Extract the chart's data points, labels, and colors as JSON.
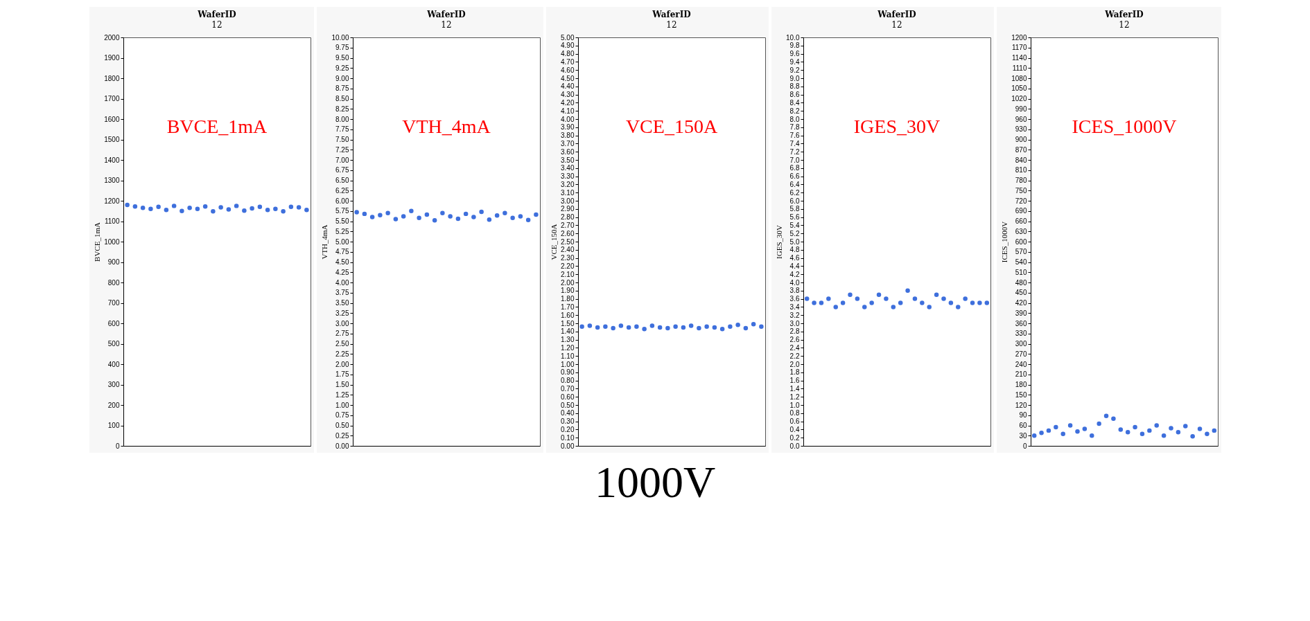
{
  "chart_data": [
    {
      "type": "scatter",
      "title": "WaferID",
      "subtitle": "12",
      "ylabel": "BVCE_1mA",
      "marker": "circle",
      "tick_labels": "y",
      "annotations": [
        "BVCE_1mA"
      ],
      "ylim": [
        0,
        2000
      ],
      "yticks": [
        0,
        100,
        200,
        300,
        400,
        500,
        600,
        700,
        800,
        900,
        1000,
        1100,
        1200,
        1300,
        1400,
        1500,
        1600,
        1700,
        1800,
        1900,
        2000
      ],
      "categories": [
        null,
        null,
        null,
        null,
        null,
        null,
        null,
        null,
        null,
        null,
        null,
        null,
        null,
        null,
        null,
        null,
        null,
        null,
        null,
        null,
        null,
        null,
        null,
        null
      ],
      "series": [
        {
          "color": "#3e6fdc",
          "values": [
            1180,
            1172,
            1165,
            1160,
            1170,
            1155,
            1175,
            1150,
            1165,
            1160,
            1172,
            1148,
            1168,
            1158,
            1175,
            1152,
            1163,
            1170,
            1155,
            1160,
            1148,
            1170,
            1168,
            1155
          ]
        }
      ]
    },
    {
      "type": "scatter",
      "title": "WaferID",
      "subtitle": "12",
      "ylabel": "VTH_4mA",
      "marker": "circle",
      "tick_labels": "y",
      "annotations": [
        "VTH_4mA"
      ],
      "ylim": [
        0,
        10
      ],
      "yticks": [
        {
          "value": 0,
          "label": "0.00"
        },
        0.25,
        {
          "value": 0.5,
          "label": "0.50"
        },
        0.75,
        {
          "value": 1,
          "label": "1.00"
        },
        1.25,
        {
          "value": 1.5,
          "label": "1.50"
        },
        1.75,
        {
          "value": 2,
          "label": "2.00"
        },
        2.25,
        {
          "value": 2.5,
          "label": "2.50"
        },
        2.75,
        {
          "value": 3,
          "label": "3.00"
        },
        3.25,
        {
          "value": 3.5,
          "label": "3.50"
        },
        3.75,
        {
          "value": 4,
          "label": "4.00"
        },
        4.25,
        {
          "value": 4.5,
          "label": "4.50"
        },
        4.75,
        {
          "value": 5,
          "label": "5.00"
        },
        5.25,
        {
          "value": 5.5,
          "label": "5.50"
        },
        5.75,
        {
          "value": 6,
          "label": "6.00"
        },
        6.25,
        {
          "value": 6.5,
          "label": "6.50"
        },
        6.75,
        {
          "value": 7,
          "label": "7.00"
        },
        7.25,
        {
          "value": 7.5,
          "label": "7.50"
        },
        7.75,
        {
          "value": 8,
          "label": "8.00"
        },
        8.25,
        {
          "value": 8.5,
          "label": "8.50"
        },
        8.75,
        {
          "value": 9,
          "label": "9.00"
        },
        9.25,
        {
          "value": 9.5,
          "label": "9.50"
        },
        9.75,
        {
          "value": 10,
          "label": "10.00"
        }
      ],
      "categories": [
        null,
        null,
        null,
        null,
        null,
        null,
        null,
        null,
        null,
        null,
        null,
        null,
        null,
        null,
        null,
        null,
        null,
        null,
        null,
        null,
        null,
        null,
        null,
        null
      ],
      "series": [
        {
          "color": "#3e6fdc",
          "values": [
            5.72,
            5.68,
            5.6,
            5.65,
            5.7,
            5.55,
            5.62,
            5.75,
            5.58,
            5.66,
            5.52,
            5.7,
            5.62,
            5.56,
            5.68,
            5.6,
            5.73,
            5.54,
            5.64,
            5.7,
            5.58,
            5.62,
            5.53,
            5.66
          ]
        }
      ]
    },
    {
      "type": "scatter",
      "title": "WaferID",
      "subtitle": "12",
      "ylabel": "VCE_150A",
      "marker": "circle",
      "tick_labels": "y",
      "annotations": [
        "VCE_150A",
        "1000V"
      ],
      "ylim": [
        0,
        5
      ],
      "yticks": [
        {
          "value": 0,
          "label": "0.00"
        },
        {
          "value": 0.1,
          "label": "0.10"
        },
        {
          "value": 0.2,
          "label": "0.20"
        },
        {
          "value": 0.3,
          "label": "0.30"
        },
        {
          "value": 0.4,
          "label": "0.40"
        },
        {
          "value": 0.5,
          "label": "0.50"
        },
        {
          "value": 0.6,
          "label": "0.60"
        },
        {
          "value": 0.7,
          "label": "0.70"
        },
        {
          "value": 0.8,
          "label": "0.80"
        },
        {
          "value": 0.9,
          "label": "0.90"
        },
        {
          "value": 1,
          "label": "1.00"
        },
        {
          "value": 1.1,
          "label": "1.10"
        },
        {
          "value": 1.2,
          "label": "1.20"
        },
        {
          "value": 1.3,
          "label": "1.30"
        },
        {
          "value": 1.4,
          "label": "1.40"
        },
        {
          "value": 1.5,
          "label": "1.50"
        },
        {
          "value": 1.6,
          "label": "1.60"
        },
        {
          "value": 1.7,
          "label": "1.70"
        },
        {
          "value": 1.8,
          "label": "1.80"
        },
        {
          "value": 1.9,
          "label": "1.90"
        },
        {
          "value": 2,
          "label": "2.00"
        },
        {
          "value": 2.1,
          "label": "2.10"
        },
        {
          "value": 2.2,
          "label": "2.20"
        },
        {
          "value": 2.3,
          "label": "2.30"
        },
        {
          "value": 2.4,
          "label": "2.40"
        },
        {
          "value": 2.5,
          "label": "2.50"
        },
        {
          "value": 2.6,
          "label": "2.60"
        },
        {
          "value": 2.7,
          "label": "2.70"
        },
        {
          "value": 2.8,
          "label": "2.80"
        },
        {
          "value": 2.9,
          "label": "2.90"
        },
        {
          "value": 3,
          "label": "3.00"
        },
        {
          "value": 3.1,
          "label": "3.10"
        },
        {
          "value": 3.2,
          "label": "3.20"
        },
        {
          "value": 3.3,
          "label": "3.30"
        },
        {
          "value": 3.4,
          "label": "3.40"
        },
        {
          "value": 3.5,
          "label": "3.50"
        },
        {
          "value": 3.6,
          "label": "3.60"
        },
        {
          "value": 3.7,
          "label": "3.70"
        },
        {
          "value": 3.8,
          "label": "3.80"
        },
        {
          "value": 3.9,
          "label": "3.90"
        },
        {
          "value": 4,
          "label": "4.00"
        },
        {
          "value": 4.1,
          "label": "4.10"
        },
        {
          "value": 4.2,
          "label": "4.20"
        },
        {
          "value": 4.3,
          "label": "4.30"
        },
        {
          "value": 4.4,
          "label": "4.40"
        },
        {
          "value": 4.5,
          "label": "4.50"
        },
        {
          "value": 4.6,
          "label": "4.60"
        },
        {
          "value": 4.7,
          "label": "4.70"
        },
        {
          "value": 4.8,
          "label": "4.80"
        },
        {
          "value": 4.9,
          "label": "4.90"
        },
        {
          "value": 5,
          "label": "5.00"
        }
      ],
      "categories": [
        null,
        null,
        null,
        null,
        null,
        null,
        null,
        null,
        null,
        null,
        null,
        null,
        null,
        null,
        null,
        null,
        null,
        null,
        null,
        null,
        null,
        null,
        null,
        null
      ],
      "series": [
        {
          "color": "#3e6fdc",
          "values": [
            1.46,
            1.47,
            1.45,
            1.46,
            1.44,
            1.47,
            1.45,
            1.46,
            1.43,
            1.47,
            1.45,
            1.44,
            1.46,
            1.45,
            1.47,
            1.44,
            1.46,
            1.45,
            1.43,
            1.46,
            1.48,
            1.44,
            1.49,
            1.46
          ]
        }
      ]
    },
    {
      "type": "scatter",
      "title": "WaferID",
      "subtitle": "12",
      "ylabel": "IGES_30V",
      "marker": "circle",
      "tick_labels": "y",
      "annotations": [
        "IGES_30V"
      ],
      "ylim": [
        0,
        10
      ],
      "yticks": [
        {
          "value": 0,
          "label": "0.0"
        },
        0.2,
        0.4,
        0.6,
        0.8,
        {
          "value": 1,
          "label": "1.0"
        },
        1.2,
        1.4,
        1.6,
        1.8,
        {
          "value": 2,
          "label": "2.0"
        },
        2.2,
        2.4,
        2.6,
        2.8,
        {
          "value": 3,
          "label": "3.0"
        },
        3.2,
        3.4,
        3.6,
        3.8,
        {
          "value": 4,
          "label": "4.0"
        },
        4.2,
        4.4,
        4.6,
        4.8,
        {
          "value": 5,
          "label": "5.0"
        },
        5.2,
        5.4,
        5.6,
        5.8,
        {
          "value": 6,
          "label": "6.0"
        },
        6.2,
        6.4,
        6.6,
        6.8,
        {
          "value": 7,
          "label": "7.0"
        },
        7.2,
        7.4,
        7.6,
        7.8,
        {
          "value": 8,
          "label": "8.0"
        },
        8.2,
        8.4,
        8.6,
        8.8,
        {
          "value": 9,
          "label": "9.0"
        },
        9.2,
        9.4,
        9.6,
        9.8,
        {
          "value": 10,
          "label": "10.0"
        }
      ],
      "categories": [
        null,
        null,
        null,
        null,
        null,
        null,
        null,
        null,
        null,
        null,
        null,
        null,
        null,
        null,
        null,
        null,
        null,
        null,
        null,
        null,
        null,
        null,
        null,
        null,
        null,
        null
      ],
      "series": [
        {
          "color": "#3e6fdc",
          "values": [
            3.6,
            3.5,
            3.5,
            3.6,
            3.4,
            3.5,
            3.7,
            3.6,
            3.4,
            3.5,
            3.7,
            3.6,
            3.4,
            3.5,
            3.8,
            3.6,
            3.5,
            3.4,
            3.7,
            3.6,
            3.5,
            3.4,
            3.6,
            3.5,
            3.5,
            3.5
          ]
        }
      ]
    },
    {
      "type": "scatter",
      "title": "WaferID",
      "subtitle": "12",
      "ylabel": "ICES_1000V",
      "marker": "circle",
      "tick_labels": "y",
      "annotations": [
        "ICES_1000V"
      ],
      "ylim": [
        0,
        1200
      ],
      "yticks": [
        0,
        30,
        60,
        90,
        120,
        150,
        180,
        210,
        240,
        270,
        300,
        330,
        360,
        390,
        420,
        450,
        480,
        510,
        540,
        570,
        600,
        630,
        660,
        690,
        720,
        750,
        780,
        810,
        840,
        870,
        900,
        930,
        960,
        990,
        1020,
        1050,
        1080,
        1110,
        1140,
        1170,
        1200
      ],
      "categories": [
        null,
        null,
        null,
        null,
        null,
        null,
        null,
        null,
        null,
        null,
        null,
        null,
        null,
        null,
        null,
        null,
        null,
        null,
        null,
        null,
        null,
        null,
        null,
        null,
        null,
        null
      ],
      "series": [
        {
          "color": "#3e6fdc",
          "values": [
            30,
            38,
            45,
            55,
            35,
            60,
            42,
            50,
            30,
            65,
            88,
            80,
            48,
            40,
            55,
            35,
            45,
            60,
            30,
            52,
            40,
            58,
            28,
            50,
            35,
            45
          ]
        }
      ]
    }
  ]
}
